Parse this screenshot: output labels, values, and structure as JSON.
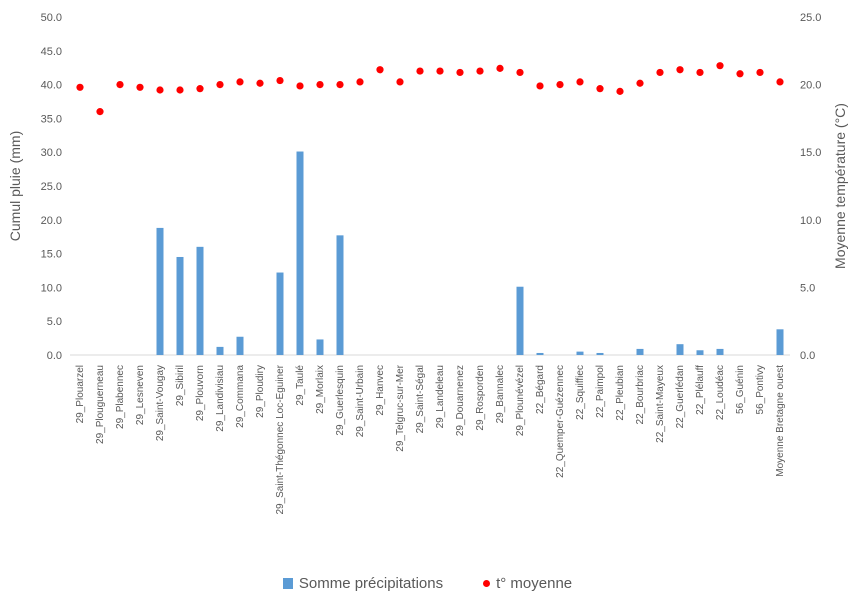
{
  "chart_data": {
    "type": "bar",
    "ylabel": "Cumul pluie (mm)",
    "y2label": "Moyenne température (°C)",
    "ylim": [
      0,
      50
    ],
    "y2lim": [
      0,
      25
    ],
    "yticks": [
      "0.0",
      "5.0",
      "10.0",
      "15.0",
      "20.0",
      "25.0",
      "30.0",
      "35.0",
      "40.0",
      "45.0",
      "50.0"
    ],
    "y2ticks": [
      "0.0",
      "5.0",
      "10.0",
      "15.0",
      "20.0",
      "25.0"
    ],
    "categories": [
      "29_Plouarzel",
      "29_Plouguerneau",
      "29_Plabennec",
      "29_Lesneven",
      "29_Saint-Vougay",
      "29_Sibiril",
      "29_Plouvorn",
      "29_Landivisiau",
      "29_Commana",
      "29_Ploudiry",
      "29_Saint-Thégonnec Loc-Eguiner",
      "29_Taulé",
      "29_Morlaix",
      "29_Guerlesquin",
      "29_Saint-Urbain",
      "29_Hanvec",
      "29_Telgruc-sur-Mer",
      "29_Saint-Ségal",
      "29_Landeleau",
      "29_Douarnenez",
      "29_Rosporden",
      "29_Bannalec",
      "29_Plounévézel",
      "22_Bégard",
      "22_Quemper-Guézennec",
      "22_Squiffiec",
      "22_Paimpol",
      "22_Pleubian",
      "22_Bourbriac",
      "22_Saint-Mayeux",
      "22_Guerlédan",
      "22_Plélauff",
      "22_Loudéac",
      "56_Guénin",
      "56_Pontivy",
      "Moyenne Bretagne ouest"
    ],
    "series": [
      {
        "name": "Somme précipitations",
        "type": "bar",
        "axis": "left",
        "color": "#5b9bd5",
        "values": [
          0,
          0,
          0,
          0,
          18.8,
          14.5,
          16.0,
          1.2,
          2.7,
          0,
          12.2,
          30.1,
          2.3,
          17.7,
          0,
          0,
          0,
          0,
          0,
          0,
          0,
          0,
          10.1,
          0.3,
          0,
          0.5,
          0.3,
          0,
          0.9,
          0,
          1.6,
          0.7,
          0.9,
          0,
          0,
          3.8
        ]
      },
      {
        "name": "t° moyenne",
        "type": "scatter",
        "axis": "right",
        "color": "#ff0000",
        "values": [
          19.8,
          18.0,
          20.0,
          19.8,
          19.6,
          19.6,
          19.7,
          20.0,
          20.2,
          20.1,
          20.3,
          19.9,
          20.0,
          20.0,
          20.2,
          21.1,
          20.2,
          21.0,
          21.0,
          20.9,
          21.0,
          21.2,
          20.9,
          19.9,
          20.0,
          20.2,
          19.7,
          19.5,
          20.1,
          20.9,
          21.1,
          20.9,
          21.4,
          20.8,
          20.9,
          20.2
        ]
      }
    ],
    "legend_position": "bottom",
    "grid": false
  }
}
